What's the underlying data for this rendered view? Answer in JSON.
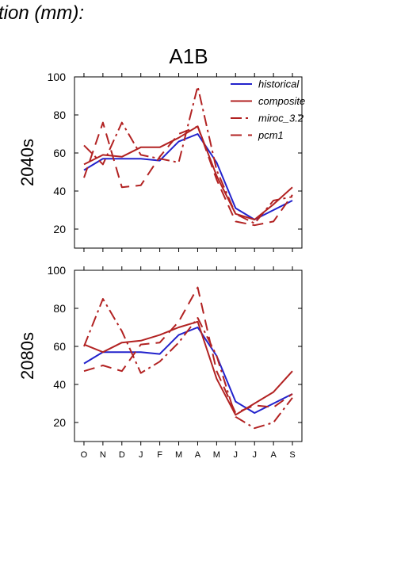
{
  "figure": {
    "title": "tion (mm):",
    "scenario": "A1B"
  },
  "chart_data": [
    {
      "type": "line",
      "row_label": "2040s",
      "categories": [
        "O",
        "N",
        "D",
        "J",
        "F",
        "M",
        "A",
        "M",
        "J",
        "J",
        "A",
        "S"
      ],
      "ylim": [
        10,
        100
      ],
      "yticks": [
        20,
        40,
        60,
        80,
        100
      ],
      "grid": false,
      "legend_position": "top-right",
      "series": [
        {
          "name": "historical",
          "color": "#2222cc",
          "dash": "solid",
          "values": [
            51,
            57,
            57,
            57,
            56,
            66,
            70,
            55,
            31,
            25,
            30,
            35
          ]
        },
        {
          "name": "composite",
          "color": "#b22222",
          "dash": "solid",
          "values": [
            54,
            59,
            58,
            63,
            63,
            68,
            74,
            48,
            28,
            25,
            33,
            42
          ]
        },
        {
          "name": "miroc_3.2",
          "color": "#b22222",
          "dash": "dashdot",
          "values": [
            64,
            54,
            76,
            59,
            57,
            55,
            95,
            51,
            28,
            23,
            35,
            37
          ]
        },
        {
          "name": "pcm1",
          "color": "#b22222",
          "dash": "dashed",
          "values": [
            47,
            76,
            42,
            43,
            58,
            70,
            74,
            46,
            24,
            22,
            24,
            38
          ]
        }
      ]
    },
    {
      "type": "line",
      "row_label": "2080s",
      "categories": [
        "O",
        "N",
        "D",
        "J",
        "F",
        "M",
        "A",
        "M",
        "J",
        "J",
        "A",
        "S"
      ],
      "ylim": [
        10,
        100
      ],
      "yticks": [
        20,
        40,
        60,
        80,
        100
      ],
      "grid": false,
      "series": [
        {
          "name": "historical",
          "color": "#2222cc",
          "dash": "solid",
          "values": [
            51,
            57,
            57,
            57,
            56,
            66,
            70,
            55,
            31,
            25,
            30,
            35
          ]
        },
        {
          "name": "composite",
          "color": "#b22222",
          "dash": "solid",
          "values": [
            61,
            57,
            62,
            63,
            66,
            70,
            73,
            43,
            24,
            30,
            36,
            47
          ]
        },
        {
          "name": "miroc_3.2",
          "color": "#b22222",
          "dash": "dashdot",
          "values": [
            60,
            85,
            68,
            46,
            52,
            62,
            75,
            55,
            23,
            17,
            20,
            33
          ]
        },
        {
          "name": "pcm1",
          "color": "#b22222",
          "dash": "dashed",
          "values": [
            47,
            50,
            47,
            61,
            62,
            73,
            91,
            47,
            25,
            29,
            28,
            35
          ]
        }
      ]
    }
  ]
}
